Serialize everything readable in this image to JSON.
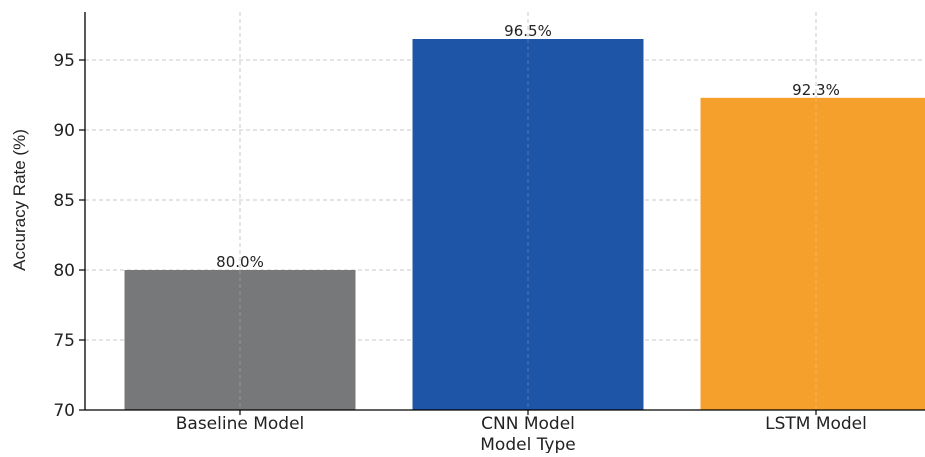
{
  "chart_data": {
    "type": "bar",
    "title": "",
    "xlabel": "Model Type",
    "ylabel": "Accuracy Rate (%)",
    "categories": [
      "Baseline Model",
      "CNN Model",
      "LSTM Model"
    ],
    "values": [
      80.0,
      96.5,
      92.3
    ],
    "data_labels": [
      "80.0%",
      "96.5%",
      "92.3%"
    ],
    "colors": [
      "#76787a",
      "#1f55a6",
      "#f5a02c"
    ],
    "ylim": [
      70,
      98
    ],
    "yticks": [
      70,
      75,
      80,
      85,
      90,
      95
    ],
    "ytick_labels": [
      "70",
      "75",
      "80",
      "85",
      "90",
      "95"
    ],
    "grid": true,
    "legend": "none"
  }
}
